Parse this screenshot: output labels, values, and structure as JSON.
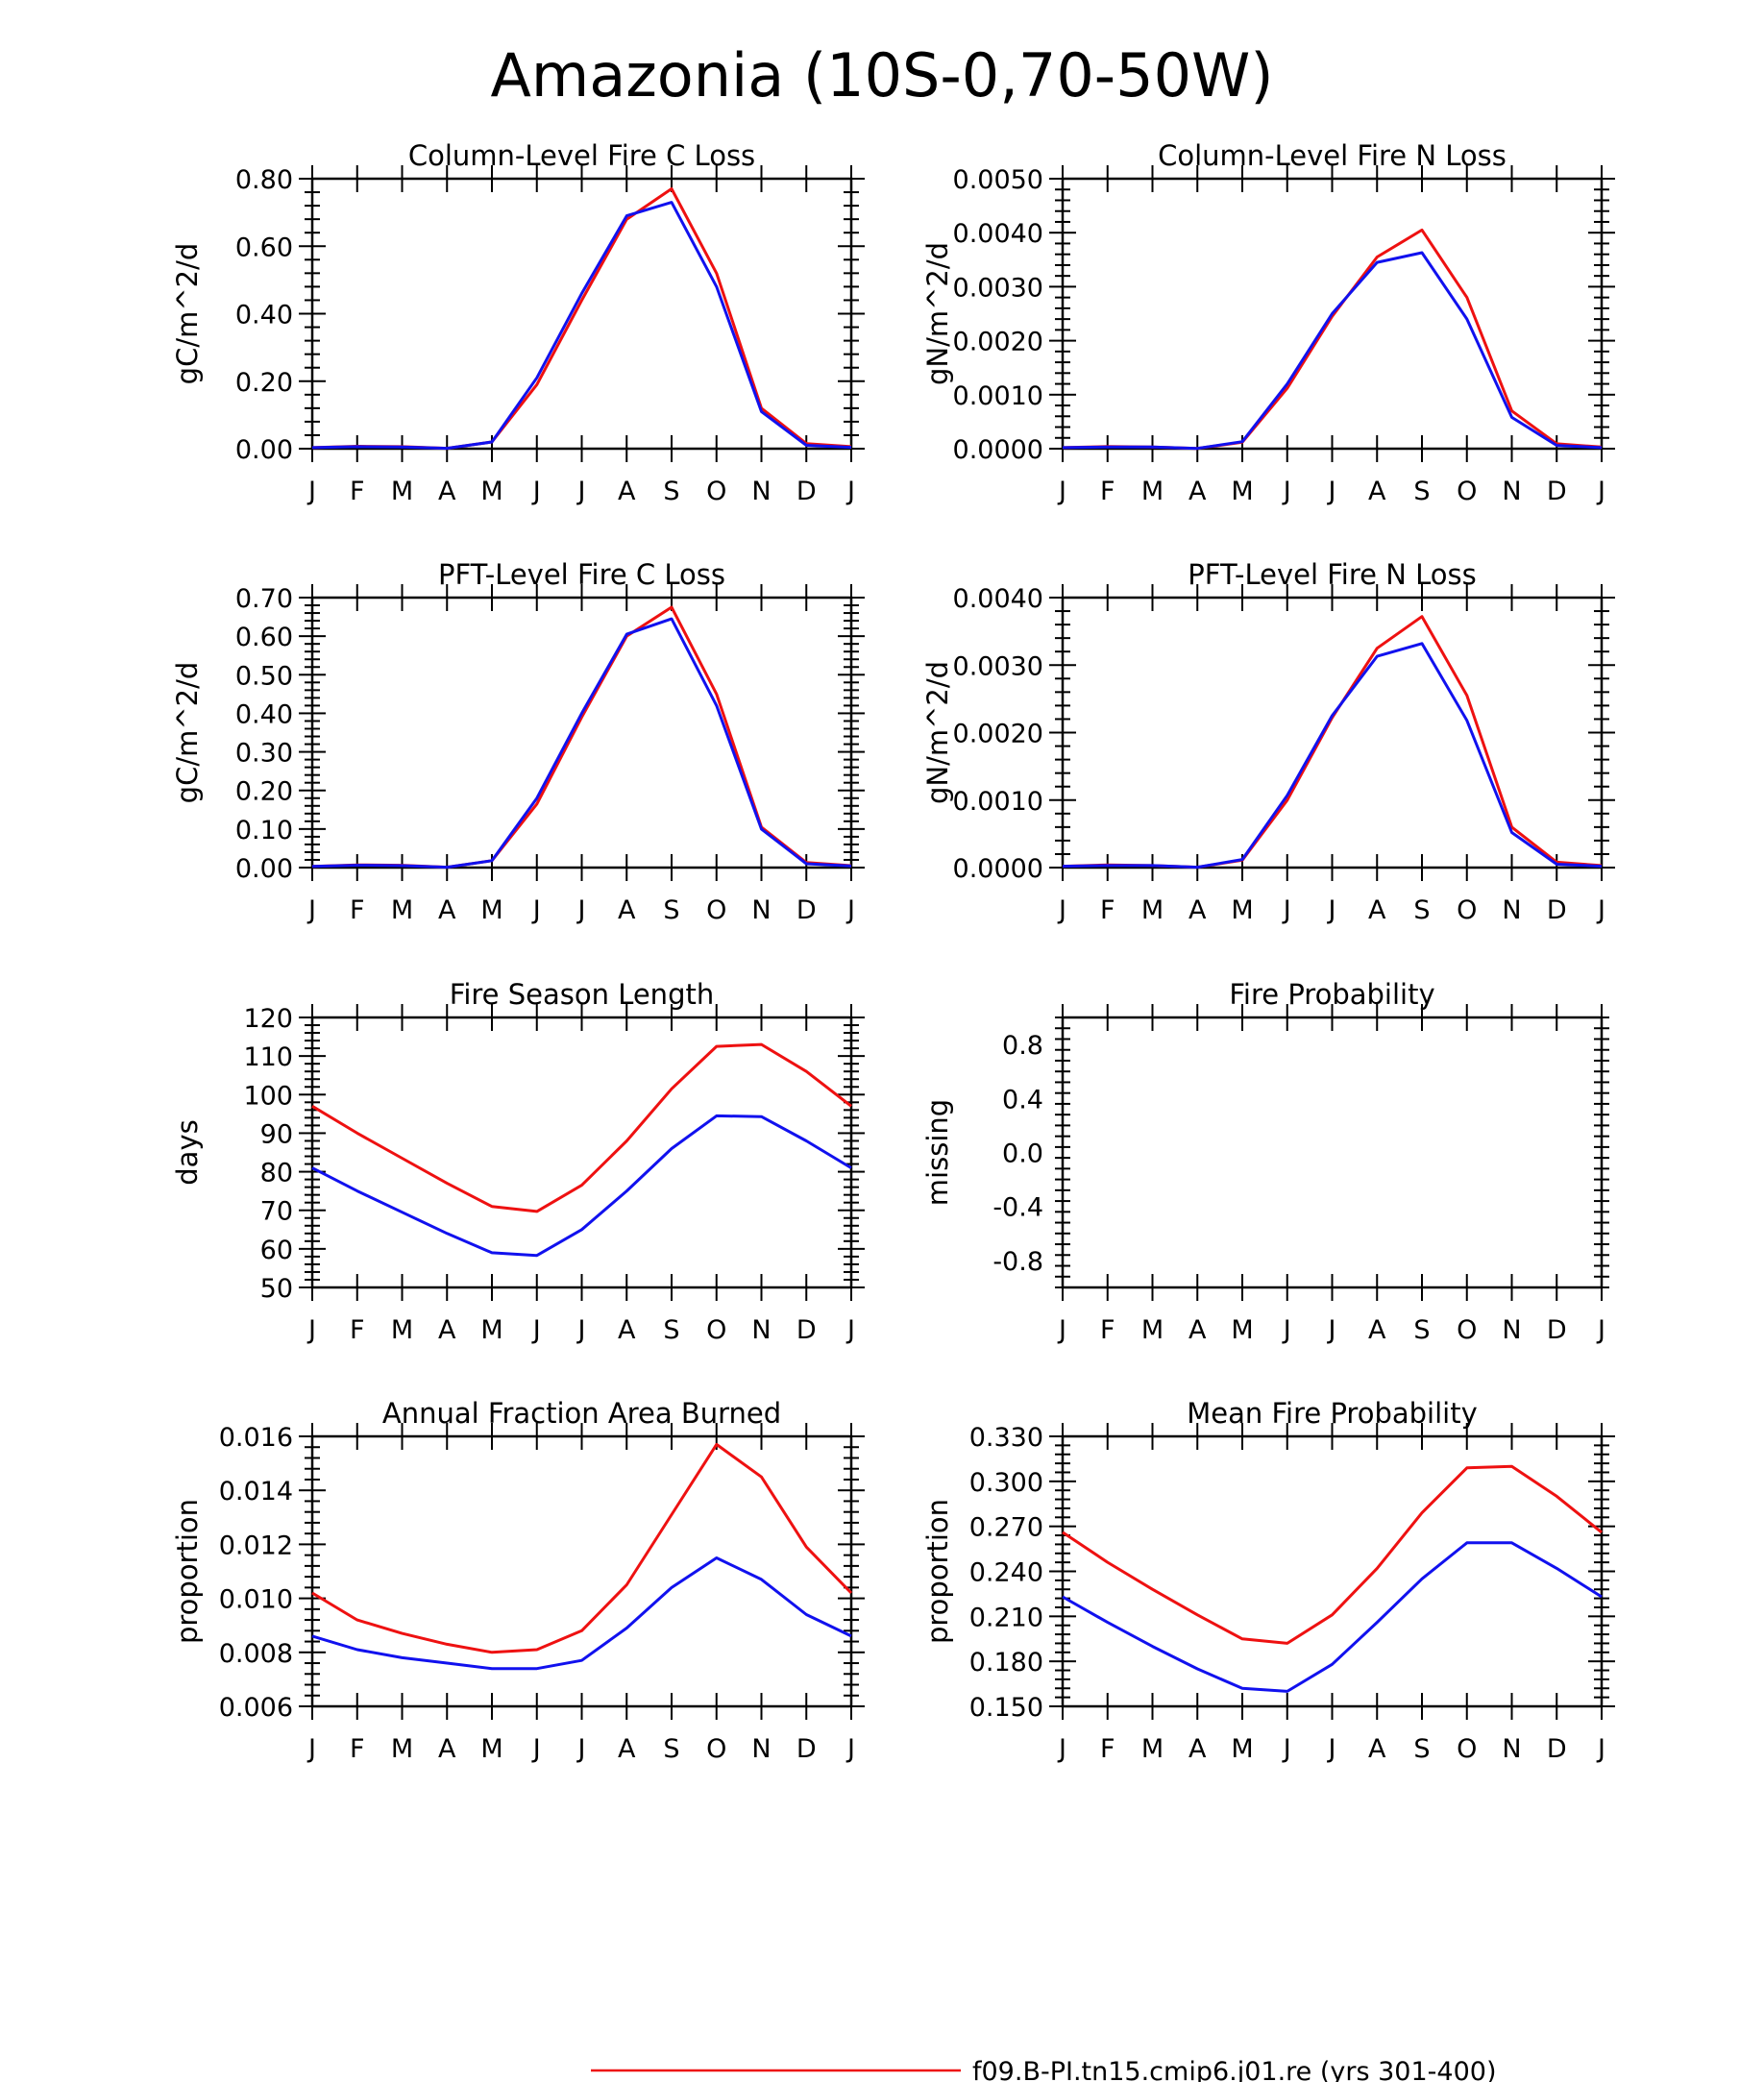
{
  "page": {
    "title": "Amazonia (10S-0,70-50W)"
  },
  "months": [
    "J",
    "F",
    "M",
    "A",
    "M",
    "J",
    "J",
    "A",
    "S",
    "O",
    "N",
    "D",
    "J"
  ],
  "series_colors": {
    "red": "#ee1111",
    "blue": "#1111ee"
  },
  "legend": {
    "label": "f09.B-PI.tn15.cmip6.j01.re (yrs 301-400)"
  },
  "chart_data": [
    {
      "type": "line",
      "title": "Column-Level Fire C Loss",
      "ylabel": "gC/m^2/d",
      "ylim": [
        0,
        0.8
      ],
      "yticks": [
        0.0,
        0.2,
        0.4,
        0.6,
        0.8
      ],
      "ytick_labels": [
        "0.00",
        "0.20",
        "0.40",
        "0.60",
        "0.80"
      ],
      "series": [
        {
          "color": "#ee1111",
          "values": [
            0.003,
            0.007,
            0.006,
            0.001,
            0.02,
            0.19,
            0.44,
            0.68,
            0.77,
            0.52,
            0.12,
            0.015,
            0.006
          ]
        },
        {
          "color": "#1111ee",
          "values": [
            0.003,
            0.006,
            0.005,
            0.001,
            0.02,
            0.21,
            0.46,
            0.69,
            0.73,
            0.48,
            0.11,
            0.01,
            0.004
          ]
        }
      ]
    },
    {
      "type": "line",
      "title": "Column-Level Fire N Loss",
      "ylabel": "gN/m^2/d",
      "ylim": [
        0,
        0.005
      ],
      "yticks": [
        0.0,
        0.001,
        0.002,
        0.003,
        0.004,
        0.005
      ],
      "ytick_labels": [
        "0.0000",
        "0.0010",
        "0.0020",
        "0.0030",
        "0.0040",
        "0.0050"
      ],
      "series": [
        {
          "color": "#ee1111",
          "values": [
            2e-05,
            4e-05,
            3e-05,
            5e-06,
            0.00012,
            0.00112,
            0.00245,
            0.00355,
            0.00405,
            0.0028,
            0.0007,
            9e-05,
            3e-05
          ]
        },
        {
          "color": "#1111ee",
          "values": [
            2e-05,
            3e-05,
            3e-05,
            5e-06,
            0.00013,
            0.0012,
            0.0025,
            0.00345,
            0.00363,
            0.0024,
            0.00058,
            6e-05,
            2e-05
          ]
        }
      ]
    },
    {
      "type": "line",
      "title": "PFT-Level Fire C Loss",
      "ylabel": "gC/m^2/d",
      "ylim": [
        0,
        0.7
      ],
      "yticks": [
        0.0,
        0.1,
        0.2,
        0.3,
        0.4,
        0.5,
        0.6,
        0.7
      ],
      "ytick_labels": [
        "0.00",
        "0.10",
        "0.20",
        "0.30",
        "0.40",
        "0.50",
        "0.60",
        "0.70"
      ],
      "series": [
        {
          "color": "#ee1111",
          "values": [
            0.003,
            0.007,
            0.006,
            0.001,
            0.018,
            0.165,
            0.39,
            0.6,
            0.675,
            0.45,
            0.105,
            0.013,
            0.005
          ]
        },
        {
          "color": "#1111ee",
          "values": [
            0.003,
            0.006,
            0.005,
            0.001,
            0.018,
            0.18,
            0.4,
            0.605,
            0.645,
            0.42,
            0.1,
            0.01,
            0.004
          ]
        }
      ]
    },
    {
      "type": "line",
      "title": "PFT-Level Fire N Loss",
      "ylabel": "gN/m^2/d",
      "ylim": [
        0,
        0.004
      ],
      "yticks": [
        0.0,
        0.001,
        0.002,
        0.003,
        0.004
      ],
      "ytick_labels": [
        "0.0000",
        "0.0010",
        "0.0020",
        "0.0030",
        "0.0040"
      ],
      "series": [
        {
          "color": "#ee1111",
          "values": [
            2e-05,
            4e-05,
            3e-05,
            5e-06,
            0.00011,
            0.001,
            0.00222,
            0.00325,
            0.00372,
            0.00255,
            0.0006,
            8e-05,
            3e-05
          ]
        },
        {
          "color": "#1111ee",
          "values": [
            2e-05,
            3e-05,
            3e-05,
            5e-06,
            0.00012,
            0.00107,
            0.00225,
            0.00313,
            0.00332,
            0.00218,
            0.00052,
            5e-05,
            2e-05
          ]
        }
      ]
    },
    {
      "type": "line",
      "title": "Fire Season Length",
      "ylabel": "days",
      "ylim": [
        50,
        120
      ],
      "yticks": [
        50,
        60,
        70,
        80,
        90,
        100,
        110,
        120
      ],
      "ytick_labels": [
        "50",
        "60",
        "70",
        "80",
        "90",
        "100",
        "110",
        "120"
      ],
      "series": [
        {
          "color": "#ee1111",
          "values": [
            97,
            90,
            83.5,
            77,
            71,
            69.7,
            76.5,
            88,
            101.5,
            112.5,
            113,
            106,
            97
          ]
        },
        {
          "color": "#1111ee",
          "values": [
            81,
            75,
            69.5,
            64,
            59,
            58.3,
            65,
            75,
            86,
            94.5,
            94.3,
            88,
            81
          ]
        }
      ]
    },
    {
      "type": "line",
      "title": "Fire Probability",
      "ylabel": "missing",
      "ylim": [
        -1,
        1
      ],
      "yticks": [
        -0.8,
        -0.4,
        0.0,
        0.4,
        0.8
      ],
      "ytick_labels": [
        "-0.8",
        "-0.4",
        "0.0",
        "0.4",
        "0.8"
      ],
      "series": []
    },
    {
      "type": "line",
      "title": "Annual Fraction Area Burned",
      "ylabel": "proportion",
      "ylim": [
        0.006,
        0.016
      ],
      "yticks": [
        0.006,
        0.008,
        0.01,
        0.012,
        0.014,
        0.016
      ],
      "ytick_labels": [
        "0.006",
        "0.008",
        "0.010",
        "0.012",
        "0.014",
        "0.016"
      ],
      "series": [
        {
          "color": "#ee1111",
          "values": [
            0.0102,
            0.0092,
            0.0087,
            0.0083,
            0.008,
            0.0081,
            0.0088,
            0.0105,
            0.0131,
            0.0157,
            0.0145,
            0.0119,
            0.0102
          ]
        },
        {
          "color": "#1111ee",
          "values": [
            0.0086,
            0.0081,
            0.0078,
            0.0076,
            0.0074,
            0.0074,
            0.0077,
            0.0089,
            0.0104,
            0.0115,
            0.0107,
            0.0094,
            0.0086
          ]
        }
      ]
    },
    {
      "type": "line",
      "title": "Mean Fire Probability",
      "ylabel": "proportion",
      "ylim": [
        0.15,
        0.33
      ],
      "yticks": [
        0.15,
        0.18,
        0.21,
        0.24,
        0.27,
        0.3,
        0.33
      ],
      "ytick_labels": [
        "0.150",
        "0.180",
        "0.210",
        "0.240",
        "0.270",
        "0.300",
        "0.330"
      ],
      "series": [
        {
          "color": "#ee1111",
          "values": [
            0.266,
            0.246,
            0.228,
            0.211,
            0.195,
            0.192,
            0.211,
            0.242,
            0.279,
            0.309,
            0.31,
            0.29,
            0.266
          ]
        },
        {
          "color": "#1111ee",
          "values": [
            0.223,
            0.206,
            0.19,
            0.175,
            0.162,
            0.16,
            0.178,
            0.206,
            0.235,
            0.259,
            0.259,
            0.242,
            0.223
          ]
        }
      ]
    }
  ]
}
